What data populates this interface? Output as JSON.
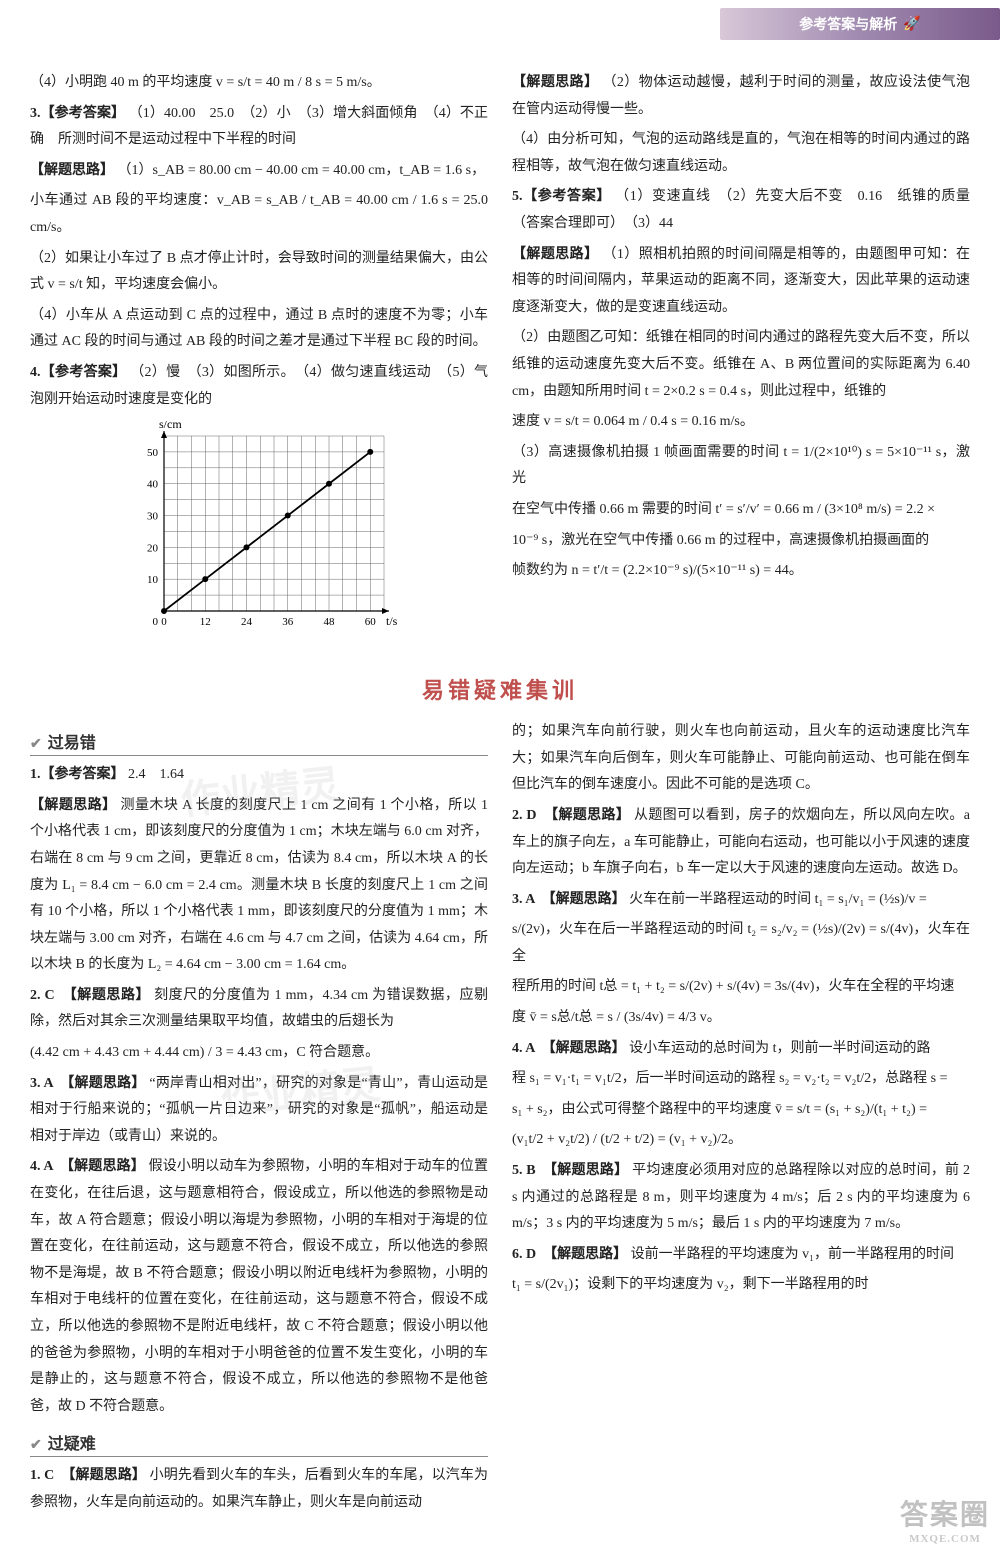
{
  "header": {
    "banner": "参考答案与解析"
  },
  "colors": {
    "banner_start": "#d8c8d8",
    "banner_end": "#7a5a8a",
    "section_title": "#c0504d",
    "text": "#222222",
    "grid": "#888888"
  },
  "top_left": {
    "p1": "（4）小明跑 40 m 的平均速度 v = s/t = 40 m / 8 s = 5 m/s。",
    "p2a": "3.【参考答案】",
    "p2b": "（1）40.00　25.0　（2）小　（3）增大斜面倾角　（4）不正确　所测时间不是运动过程中下半程的时间",
    "p3a": "【解题思路】",
    "p3b": "（1）s_AB = 80.00 cm − 40.00 cm = 40.00 cm，t_AB = 1.6 s，",
    "p3c": "小车通过 AB 段的平均速度：v_AB = s_AB / t_AB = 40.00 cm / 1.6 s = 25.0 cm/s。",
    "p4": "（2）如果让小车过了 B 点才停止计时，会导致时间的测量结果偏大，由公式 v = s/t 知，平均速度会偏小。",
    "p5": "（4）小车从 A 点运动到 C 点的过程中，通过 B 点时的速度不为零；小车通过 AC 段的时间与通过 AB 段的时间之差才是通过下半程 BC 段的时间。",
    "p6a": "4.【参考答案】",
    "p6b": "（2）慢　（3）如图所示。　（4）做匀速直线运动　（5）气泡刚开始运动时速度是变化的"
  },
  "top_right": {
    "p1a": "【解题思路】",
    "p1b": "（2）物体运动越慢，越利于时间的测量，故应设法使气泡在管内运动得慢一些。",
    "p2": "（4）由分析可知，气泡的运动路线是直的，气泡在相等的时间内通过的路程相等，故气泡在做匀速直线运动。",
    "p3a": "5.【参考答案】",
    "p3b": "（1）变速直线　（2）先变大后不变　0.16　纸锥的质量（答案合理即可）　（3）44",
    "p4a": "【解题思路】",
    "p4b": "（1）照相机拍照的时间间隔是相等的，由题图甲可知：在相等的时间间隔内，苹果运动的距离不同，逐渐变大，因此苹果的运动速度逐渐变大，做的是变速直线运动。",
    "p5": "（2）由题图乙可知：纸锥在相同的时间内通过的路程先变大后不变，所以纸锥的运动速度先变大后不变。纸锥在 A、B 两位置间的实际距离为 6.40 cm，由题知所用时间 t = 2×0.2 s = 0.4 s，则此过程中，纸锥的",
    "p5b": "速度 v = s/t = 0.064 m / 0.4 s = 0.16 m/s。",
    "p6": "（3）高速摄像机拍摄 1 帧画面需要的时间 t = 1/(2×10¹⁰) s = 5×10⁻¹¹ s，激光",
    "p7": "在空气中传播 0.66 m 需要的时间 t′ = s′/v′ = 0.66 m / (3×10⁸ m/s) = 2.2 ×",
    "p8": "10⁻⁹ s，激光在空气中传播 0.66 m 的过程中，高速摄像机拍摄画面的",
    "p9": "帧数约为 n = t′/t = (2.2×10⁻⁹ s)/(5×10⁻¹¹ s) = 44。"
  },
  "chart": {
    "type": "line",
    "x_label": "t/s",
    "y_label": "s/cm",
    "x_ticks": [
      0,
      12,
      24,
      36,
      48,
      60
    ],
    "y_ticks": [
      0,
      10,
      20,
      30,
      40,
      50
    ],
    "xlim": [
      0,
      64
    ],
    "ylim": [
      0,
      55
    ],
    "points": [
      [
        0,
        0
      ],
      [
        12,
        10
      ],
      [
        24,
        20
      ],
      [
        36,
        30
      ],
      [
        48,
        40
      ],
      [
        60,
        50
      ]
    ],
    "grid_step_x": 4,
    "grid_step_y": 5,
    "line_color": "#000000",
    "grid_color": "#666666",
    "background": "#ffffff",
    "marker": "circle",
    "marker_size": 3
  },
  "section_title": "易错疑难集训",
  "sub1": "过易错",
  "sub2": "过疑难",
  "bl": {
    "q1a": "1.【参考答案】",
    "q1b": "2.4　1.64",
    "q1c": "【解题思路】",
    "q1d": "测量木块 A 长度的刻度尺上 1 cm 之间有 1 个小格，所以 1 个小格代表 1 cm，即该刻度尺的分度值为 1 cm；木块左端与 6.0 cm 对齐，右端在 8 cm 与 9 cm 之间，更靠近 8 cm，估读为 8.4 cm，所以木块 A 的长度为 L₁ = 8.4 cm − 6.0 cm = 2.4 cm。测量木块 B 长度的刻度尺上 1 cm 之间有 10 个小格，所以 1 个小格代表 1 mm，即该刻度尺的分度值为 1 mm；木块左端与 3.00 cm 对齐，右端在 4.6 cm 与 4.7 cm 之间，估读为 4.64 cm，所以木块 B 的长度为 L₂ = 4.64 cm − 3.00 cm = 1.64 cm。",
    "q2a": "2. C　【解题思路】",
    "q2b": "刻度尺的分度值为 1 mm，4.34 cm 为错误数据，应剔除，然后对其余三次测量结果取平均值，故蜡虫的后翅长为",
    "q2c": "(4.42 cm + 4.43 cm + 4.44 cm) / 3 = 4.43 cm，C 符合题意。",
    "q3a": "3. A　【解题思路】",
    "q3b": "“两岸青山相对出”，研究的对象是“青山”，青山运动是相对于行船来说的；“孤帆一片日边来”，研究的对象是“孤帆”，船运动是相对于岸边（或青山）来说的。",
    "q4a": "4. A　【解题思路】",
    "q4b": "假设小明以动车为参照物，小明的车相对于动车的位置在变化，在往后退，这与题意相符合，假设成立，所以他选的参照物是动车，故 A 符合题意；假设小明以海堤为参照物，小明的车相对于海堤的位置在变化，在往前运动，这与题意不符合，假设不成立，所以他选的参照物不是海堤，故 B 不符合题意；假设小明以附近电线杆为参照物，小明的车相对于电线杆的位置在变化，在往前运动，这与题意不符合，假设不成立，所以他选的参照物不是附近电线杆，故 C 不符合题意；假设小明以他的爸爸为参照物，小明的车相对于小明爸爸的位置不发生变化，小明的车是静止的，这与题意不符合，假设不成立，所以他选的参照物不是他爸爸，故 D 不符合题意。",
    "q5a": "1. C　【解题思路】",
    "q5b": "小明先看到火车的车头，后看到火车的车尾，以汽车为参照物，火车是向前运动的。如果汽车静止，则火车是向前运动"
  },
  "br": {
    "p0": "的；如果汽车向前行驶，则火车也向前运动，且火车的运动速度比汽车大；如果汽车向后倒车，则火车可能静止、可能向前运动、也可能在倒车但比汽车的倒车速度小。因此不可能的是选项 C。",
    "q2a": "2. D　【解题思路】",
    "q2b": "从题图可以看到，房子的炊烟向左，所以风向左吹。a 车上的旗子向左，a 车可能静止，可能向右运动，也可能以小于风速的速度向左运动；b 车旗子向右，b 车一定以大于风速的速度向左运动。故选 D。",
    "q3a": "3. A　【解题思路】",
    "q3b": "火车在前一半路程运动的时间 t₁ = s₁/v₁ = (½s)/v =",
    "q3c": "s/(2v)，火车在后一半路程运动的时间 t₂ = s₂/v₂ = (½s)/(2v) = s/(4v)，火车在全",
    "q3d": "程所用的时间 t总 = t₁ + t₂ = s/(2v) + s/(4v) = 3s/(4v)，火车在全程的平均速",
    "q3e": "度 v̄ = s总/t总 = s / (3s/4v) = 4/3 v。",
    "q4a": "4. A　【解题思路】",
    "q4b": "设小车运动的总时间为 t，则前一半时间运动的路",
    "q4c": "程 s₁ = v₁·t₁ = v₁t/2，后一半时间运动的路程 s₂ = v₂·t₂ = v₂t/2，总路程 s =",
    "q4d": "s₁ + s₂，由公式可得整个路程中的平均速度 v̄ = s/t = (s₁ + s₂)/(t₁ + t₂) =",
    "q4e": "(v₁t/2 + v₂t/2) / (t/2 + t/2) = (v₁ + v₂)/2。",
    "q5a": "5. B　【解题思路】",
    "q5b": "平均速度必须用对应的总路程除以对应的总时间，前 2 s 内通过的总路程是 8 m，则平均速度为 4 m/s；后 2 s 内的平均速度为 6 m/s；3 s 内的平均速度为 5 m/s；最后 1 s 内的平均速度为 7 m/s。",
    "q6a": "6. D　【解题思路】",
    "q6b": "设前一半路程的平均速度为 v₁，前一半路程用的时间",
    "q6c": "t₁ = s/(2v₁)；设剩下的平均速度为 v₂，剩下一半路程用的时"
  },
  "watermarks": {
    "corner_main": "答案圈",
    "corner_sub": "MXQE.COM",
    "ghost1": "作业精灵",
    "ghost2": "作业精灵"
  }
}
